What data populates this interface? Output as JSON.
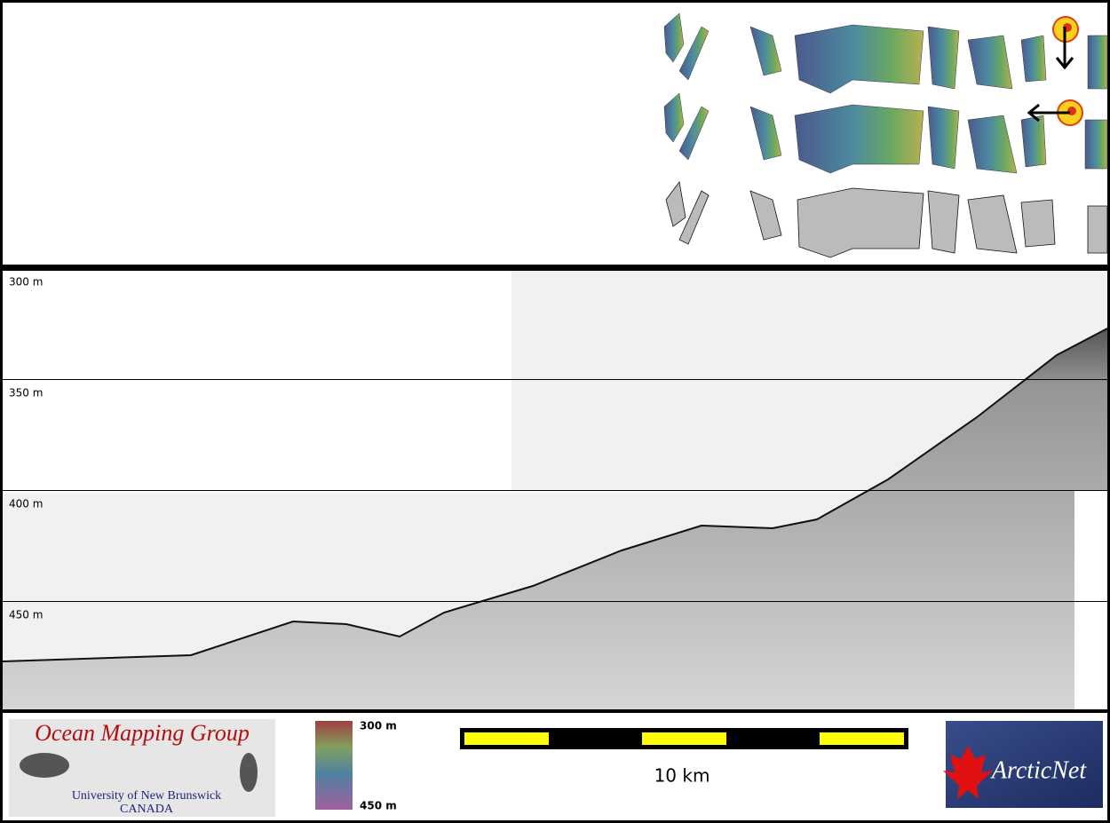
{
  "depth_axis": {
    "labels": [
      "300 m",
      "350 m",
      "400 m",
      "450 m"
    ]
  },
  "footer": {
    "logo": {
      "title": "Ocean Mapping Group",
      "university": "University of New Brunswick",
      "country": "CANADA"
    },
    "color_scale": {
      "top": "300 m",
      "bottom": "450 m"
    },
    "scale_bar": {
      "label": "10 km"
    },
    "partner_logo": {
      "name": "ArcticNet"
    }
  }
}
